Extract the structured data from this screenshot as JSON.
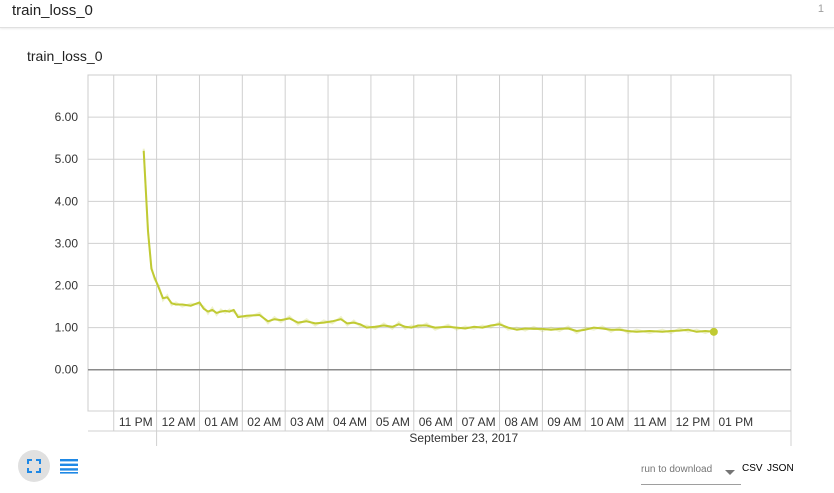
{
  "header": {
    "title": "train_loss_0",
    "count": "1"
  },
  "card": {
    "title": "train_loss_0"
  },
  "chart_data": {
    "type": "line",
    "title": "train_loss_0",
    "xlabel": "September 23, 2017",
    "ylabel": "",
    "ylim": [
      -0.98,
      7.0
    ],
    "xlim_hours": [
      -1.6,
      14.8
    ],
    "grid": true,
    "y_ticks": [
      0,
      1,
      2,
      3,
      4,
      5,
      6
    ],
    "y_tick_labels": [
      "0.00",
      "1.00",
      "2.00",
      "3.00",
      "4.00",
      "5.00",
      "6.00"
    ],
    "x_tick_hours": [
      -1,
      0,
      1,
      2,
      3,
      4,
      5,
      6,
      7,
      8,
      9,
      10,
      11,
      12,
      13
    ],
    "x_tick_labels": [
      "11 PM",
      "12 AM",
      "01 AM",
      "02 AM",
      "03 AM",
      "04 AM",
      "05 AM",
      "06 AM",
      "07 AM",
      "08 AM",
      "09 AM",
      "10 AM",
      "11 AM",
      "12 PM",
      "01 PM"
    ],
    "date_label": "September 23, 2017",
    "series": [
      {
        "color": "#c0ca33",
        "x": [
          -0.3,
          -0.2,
          -0.12,
          -0.05,
          0.05,
          0.15,
          0.25,
          0.35,
          0.45,
          0.6,
          0.8,
          1.0,
          1.1,
          1.2,
          1.3,
          1.4,
          1.5,
          1.6,
          1.7,
          1.8,
          1.9,
          2.1,
          2.4,
          2.6,
          2.75,
          2.9,
          3.1,
          3.3,
          3.5,
          3.7,
          3.9,
          4.1,
          4.3,
          4.45,
          4.6,
          4.75,
          4.9,
          5.1,
          5.3,
          5.5,
          5.65,
          5.8,
          5.95,
          6.1,
          6.3,
          6.5,
          6.8,
          7.0,
          7.2,
          7.4,
          7.6,
          7.8,
          8.0,
          8.2,
          8.4,
          8.6,
          8.8,
          9.0,
          9.2,
          9.4,
          9.6,
          9.8,
          10.0,
          10.2,
          10.4,
          10.6,
          10.8,
          11.0,
          11.2,
          11.5,
          11.8,
          12.0,
          12.2,
          12.4,
          12.6,
          12.8,
          13.0
        ],
        "y": [
          5.2,
          3.3,
          2.4,
          2.2,
          1.95,
          1.7,
          1.72,
          1.58,
          1.55,
          1.55,
          1.52,
          1.6,
          1.45,
          1.38,
          1.42,
          1.35,
          1.38,
          1.4,
          1.38,
          1.42,
          1.25,
          1.28,
          1.3,
          1.15,
          1.2,
          1.18,
          1.22,
          1.12,
          1.15,
          1.1,
          1.12,
          1.15,
          1.2,
          1.1,
          1.12,
          1.08,
          1.0,
          1.02,
          1.05,
          1.02,
          1.08,
          1.02,
          1.0,
          1.05,
          1.05,
          1.0,
          1.02,
          1.0,
          0.98,
          1.02,
          1.0,
          1.05,
          1.08,
          1.0,
          0.95,
          0.98,
          0.97,
          0.97,
          0.95,
          0.97,
          0.98,
          0.92,
          0.95,
          1.0,
          0.98,
          0.95,
          0.95,
          0.92,
          0.9,
          0.92,
          0.9,
          0.92,
          0.93,
          0.95,
          0.9,
          0.92,
          0.9
        ]
      }
    ]
  }
}
